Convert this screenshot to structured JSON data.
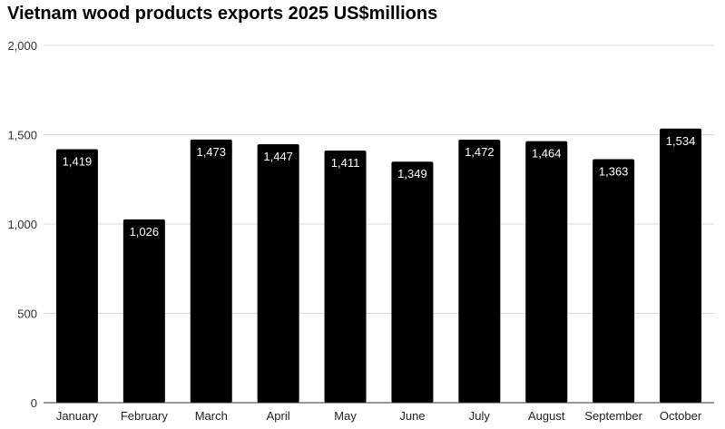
{
  "chart_data": {
    "type": "bar",
    "title": "Vietnam wood products exports 2025 US$millions",
    "categories": [
      "January",
      "February",
      "March",
      "April",
      "May",
      "June",
      "July",
      "August",
      "September",
      "October"
    ],
    "values": [
      1419,
      1026,
      1473,
      1447,
      1411,
      1349,
      1472,
      1464,
      1363,
      1534
    ],
    "data_labels": [
      "1,419",
      "1,026",
      "1,473",
      "1,447",
      "1,411",
      "1,349",
      "1,472",
      "1,464",
      "1,363",
      "1,534"
    ],
    "ylim": [
      0,
      2000
    ],
    "yticks": [
      0,
      500,
      1000,
      1500,
      2000
    ],
    "ytick_labels": [
      "0",
      "500",
      "1,000",
      "1,500",
      "2,000"
    ],
    "xlabel": "",
    "ylabel": "",
    "grid": "horizontal",
    "legend": "none",
    "bar_color": "#000000",
    "gridline_color": "#d9d9d9"
  }
}
